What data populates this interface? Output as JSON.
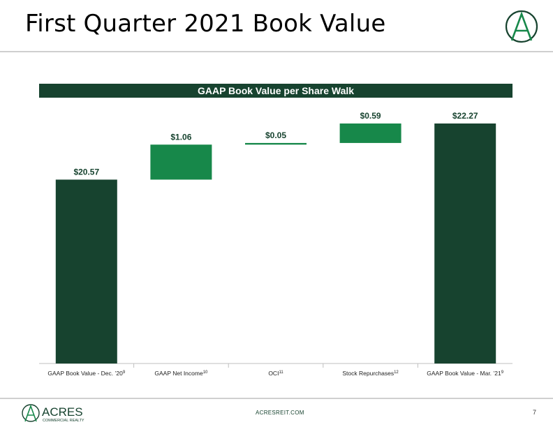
{
  "page": {
    "title": "First Quarter 2021 Book Value",
    "footer_url": "ACRESREIT.COM",
    "page_number": "7",
    "logo_text": "ACRES",
    "logo_subtext": "COMMERCIAL REALTY",
    "logo_letter": "A"
  },
  "colors": {
    "dark_green": "#17432f",
    "bright_green": "#17884a",
    "banner": "#17432f"
  },
  "chart_data": {
    "type": "bar",
    "subtype": "waterfall",
    "title": "GAAP Book Value per Share Walk",
    "categories": [
      {
        "label": "GAAP Book Value - Dec. ’20",
        "sup": "9"
      },
      {
        "label": "GAAP Net Income",
        "sup": "10"
      },
      {
        "label": "OCI",
        "sup": "11"
      },
      {
        "label": "Stock Repurchases",
        "sup": "12"
      },
      {
        "label": "GAAP Book Value - Mar. ’21",
        "sup": "9"
      }
    ],
    "values": [
      20.57,
      1.06,
      0.05,
      0.59,
      22.27
    ],
    "kinds": [
      "total",
      "delta",
      "delta",
      "delta",
      "total"
    ],
    "data_labels": [
      "$20.57",
      "$1.06",
      "$0.05",
      "$0.59",
      "$22.27"
    ],
    "ylim": [
      15,
      22.27
    ],
    "grid": false,
    "legend": "none"
  }
}
